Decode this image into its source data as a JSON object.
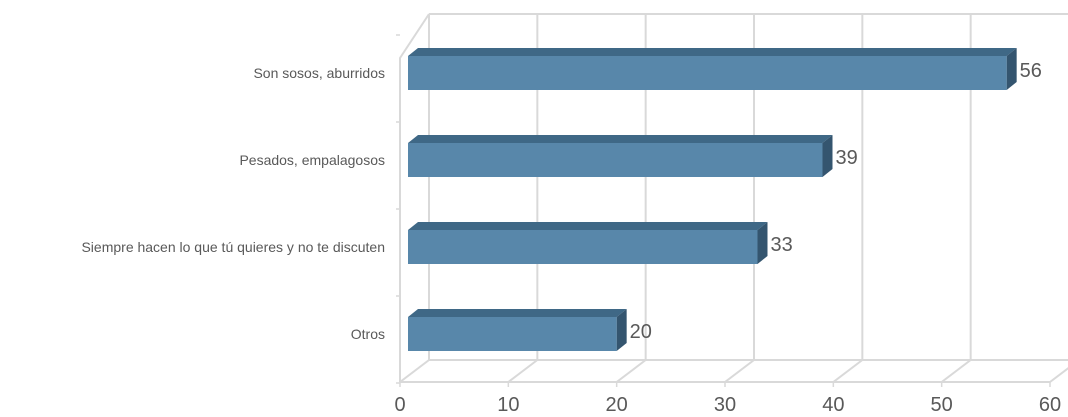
{
  "chart_data": {
    "type": "bar",
    "orientation": "horizontal",
    "style": "3d",
    "categories": [
      "Son sosos, aburridos",
      "Pesados, empalagosos",
      "Siempre hacen lo que tú quieres y no te discuten",
      "Otros"
    ],
    "values": [
      56,
      39,
      33,
      20
    ],
    "data_labels": [
      "56",
      "39",
      "33",
      "20"
    ],
    "x_ticks": [
      "0",
      "10",
      "20",
      "30",
      "40",
      "50",
      "60"
    ],
    "xlim": [
      0,
      60
    ],
    "grid": true,
    "legend": "none",
    "title": "",
    "xlabel": "",
    "ylabel": "",
    "colors": {
      "bar_front": "#5887aa",
      "bar_top": "#3f6886",
      "bar_side": "#34556f",
      "grid": "#d9d9d9",
      "tick_label": "#595959",
      "category_label": "#595959"
    }
  }
}
